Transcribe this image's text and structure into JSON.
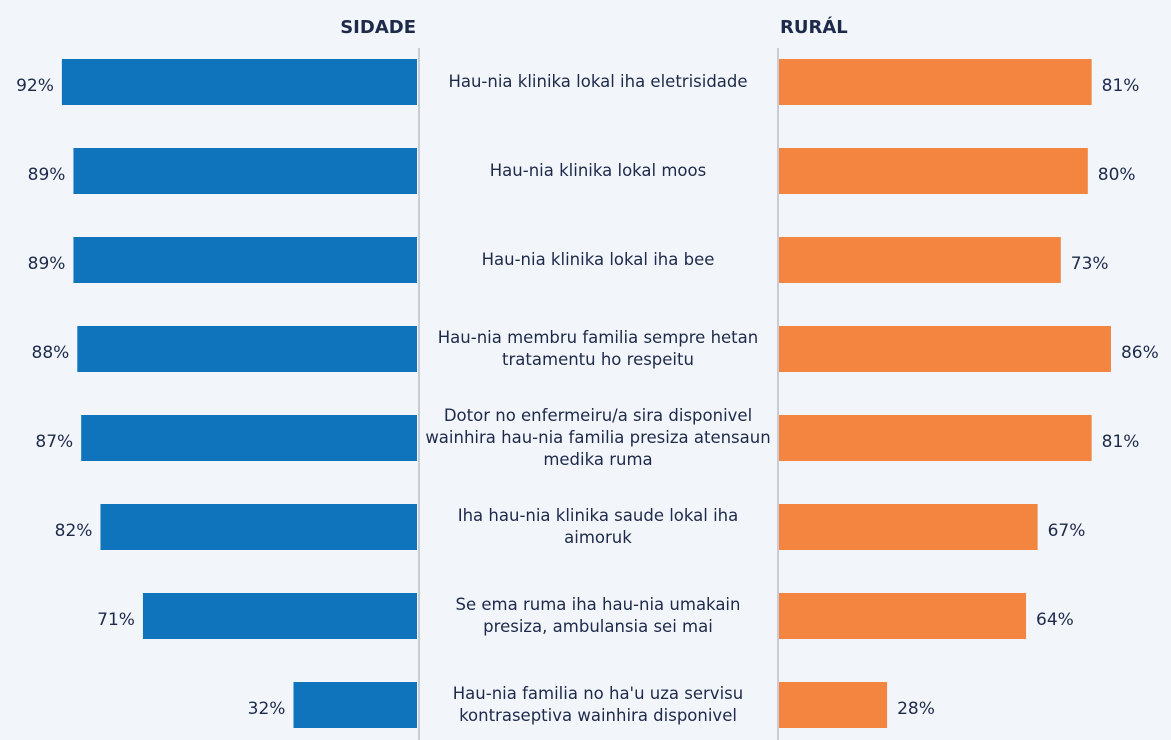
{
  "chart_data": {
    "type": "butterfly-bar",
    "categories": [
      "Hau-nia klinika lokal iha eletrisidade",
      "Hau-nia klinika lokal moos",
      "Hau-nia klinika lokal iha bee",
      "Hau-nia membru familia sempre hetan tratamentu ho respeitu",
      "Dotor no enfermeiru/a sira disponivel wainhira hau-nia familia presiza atensaun medika ruma",
      "Iha hau-nia klinika saude lokal iha aimoruk",
      "Se ema ruma iha hau-nia umakain presiza, ambulansia sei mai",
      "Hau-nia familia no ha'u uza servisu kontraseptiva wainhira disponivel"
    ],
    "series": [
      {
        "name": "SIDADE",
        "color": "#0f74bb",
        "values": [
          92,
          89,
          89,
          88,
          87,
          82,
          71,
          32
        ],
        "value_labels": [
          "92%",
          "89%",
          "89%",
          "88%",
          "87%",
          "82%",
          "71%",
          "32%"
        ]
      },
      {
        "name": "RURÁL",
        "color": "#f38540",
        "values": [
          81,
          80,
          73,
          86,
          81,
          67,
          64,
          28
        ],
        "value_labels": [
          "81%",
          "80%",
          "73%",
          "86%",
          "81%",
          "67%",
          "64%",
          "28%"
        ]
      }
    ]
  }
}
